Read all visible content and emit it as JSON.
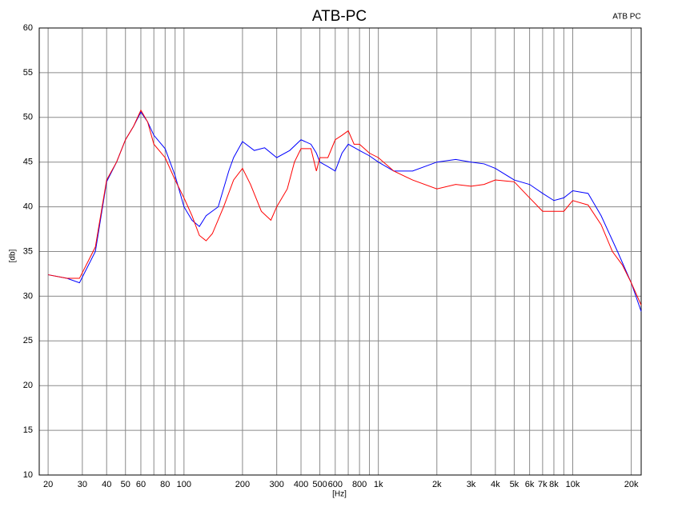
{
  "chart_data": {
    "type": "line",
    "title": "ATB-PC",
    "annotation": "ATB PC",
    "x_label": "[Hz]",
    "y_label": "[db]",
    "xscale": "log",
    "grid": true,
    "xlim": [
      18,
      22500
    ],
    "ylim": [
      10,
      60
    ],
    "yticks": [
      10,
      15,
      20,
      25,
      30,
      35,
      40,
      45,
      50,
      55,
      60
    ],
    "xticks": [
      20,
      30,
      40,
      50,
      60,
      80,
      100,
      200,
      300,
      400,
      500,
      600,
      800,
      {
        "value": 1000,
        "label": "1k"
      },
      {
        "value": 2000,
        "label": "2k"
      },
      {
        "value": 3000,
        "label": "3k"
      },
      {
        "value": 4000,
        "label": "4k"
      },
      {
        "value": 5000,
        "label": "5k"
      },
      {
        "value": 6000,
        "label": "6k"
      },
      {
        "value": 7000,
        "label": "7k"
      },
      {
        "value": 8000,
        "label": "8k"
      },
      {
        "value": 10000,
        "label": "10k"
      },
      {
        "value": 20000,
        "label": "20k"
      }
    ],
    "xminorticks": [
      70,
      90,
      700,
      900,
      9000
    ],
    "series": [
      {
        "color": "#0000ff",
        "x": [
          20,
          25,
          29,
          35,
          40,
          45,
          50,
          55,
          60,
          65,
          70,
          80,
          90,
          100,
          110,
          120,
          130,
          150,
          170,
          180,
          200,
          230,
          260,
          300,
          350,
          400,
          450,
          480,
          500,
          550,
          600,
          650,
          700,
          800,
          900,
          1000,
          1200,
          1500,
          2000,
          2500,
          3000,
          3500,
          4000,
          5000,
          6000,
          7000,
          8000,
          9000,
          10000,
          12000,
          14000,
          17000,
          20000,
          22500
        ],
        "values": [
          32.4,
          32,
          31.5,
          35,
          42.8,
          45,
          47.5,
          49,
          50.6,
          49.5,
          48,
          46.5,
          43.5,
          40,
          38.5,
          37.8,
          39,
          40,
          44,
          45.5,
          47.3,
          46.3,
          46.6,
          45.5,
          46.3,
          47.5,
          47,
          46,
          45,
          44.5,
          44,
          46,
          47,
          46.3,
          45.7,
          45,
          44,
          44,
          45,
          45.3,
          45,
          44.8,
          44.3,
          43,
          42.5,
          41.5,
          40.7,
          41,
          41.8,
          41.5,
          39,
          35,
          31.5,
          28.3
        ]
      },
      {
        "color": "#ff0000",
        "x": [
          20,
          25,
          29,
          35,
          40,
          45,
          50,
          55,
          60,
          65,
          70,
          80,
          90,
          100,
          110,
          120,
          130,
          140,
          160,
          180,
          200,
          220,
          250,
          280,
          300,
          340,
          370,
          400,
          450,
          480,
          500,
          550,
          600,
          650,
          700,
          750,
          800,
          900,
          1000,
          1200,
          1500,
          2000,
          2500,
          3000,
          3500,
          4000,
          5000,
          6000,
          7000,
          8000,
          9000,
          10000,
          12000,
          14000,
          16000,
          18000,
          20000,
          22500
        ],
        "values": [
          32.4,
          32,
          32,
          35.5,
          43,
          45,
          47.5,
          49,
          50.8,
          49.5,
          47,
          45.5,
          43,
          41,
          39,
          36.8,
          36.2,
          37,
          40,
          43,
          44.3,
          42.5,
          39.5,
          38.5,
          40,
          42,
          45,
          46.5,
          46.5,
          44,
          45.5,
          45.5,
          47.5,
          48,
          48.5,
          47,
          47,
          46,
          45.5,
          44,
          43,
          42,
          42.5,
          42.3,
          42.5,
          43,
          42.8,
          41,
          39.5,
          39.5,
          39.5,
          40.7,
          40.2,
          38,
          35,
          33.5,
          31.5,
          29
        ]
      }
    ]
  }
}
